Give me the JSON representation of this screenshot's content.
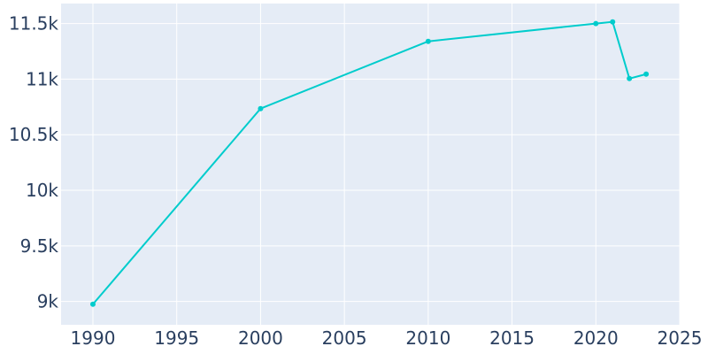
{
  "chart_data": {
    "type": "line",
    "title": "",
    "xlabel": "",
    "ylabel": "",
    "x": [
      1990,
      2000,
      2010,
      2020,
      2021,
      2022,
      2023
    ],
    "series": [
      {
        "values": [
          8975,
          10735,
          11340,
          11500,
          11515,
          11005,
          11045
        ]
      }
    ],
    "xlim": [
      1988.1,
      2025
    ],
    "ylim": [
      8790,
      11680
    ],
    "x_ticks": [
      1990,
      1995,
      2000,
      2005,
      2010,
      2015,
      2020,
      2025
    ],
    "x_tick_labels": [
      "1990",
      "1995",
      "2000",
      "2005",
      "2010",
      "2015",
      "2020",
      "2025"
    ],
    "y_ticks": [
      9000,
      9500,
      10000,
      10500,
      11000,
      11500
    ],
    "y_tick_labels": [
      "9k",
      "9.5k",
      "10k",
      "10.5k",
      "11k",
      "11.5k"
    ],
    "grid": true,
    "colors": {
      "line": "#00cccc",
      "plot_background": "#e5ecf6",
      "grid": "#ffffff",
      "tick_text": "#2a3f5f"
    }
  }
}
